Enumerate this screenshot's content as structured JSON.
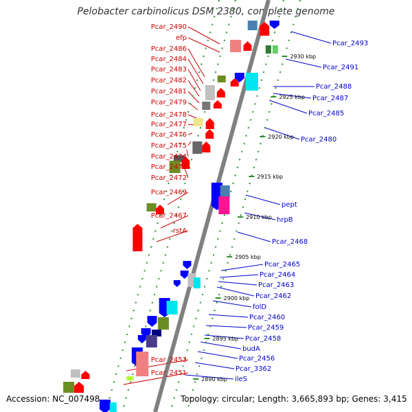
{
  "title": "Pelobacter carbinolicus DSM 2380, complete genome",
  "footer": {
    "accession": "Accession: NC_007498",
    "topology": "Topology: circular; Length: 3,665,893 bp; Genes: 3,415"
  },
  "colors": {
    "left_label": "#cc0000",
    "right_label": "#0000cc",
    "forward_gene": "#ff0000",
    "reverse_gene": "#0000ff",
    "backbone": "#808080",
    "tick": "#2e8b2e"
  },
  "kbp_ticks": [
    "2930 kbp",
    "2925 kbp",
    "2920 kbp",
    "2915 kbp",
    "2910 kbp",
    "2905 kbp",
    "2900 kbp",
    "2895 kbp",
    "2890 kbp"
  ],
  "left_labels": [
    "Pcar_2490",
    "efp",
    "Pcar_2486",
    "Pcar_2484",
    "Pcar_2483",
    "Pcar_2482",
    "Pcar_2481",
    "Pcar_2479",
    "Pcar_2478",
    "Pcar_2477",
    "Pcar_2476",
    "Pcar_2475",
    "Pcar_2474",
    "Pcar_2473",
    "Pcar_2472",
    "Pcar_2469",
    "Pcar_2467",
    "rstA",
    "Pcar_2453",
    "Pcar_2451"
  ],
  "right_labels": [
    "Pcar_2493",
    "Pcar_2491",
    "Pcar_2488",
    "Pcar_2487",
    "Pcar_2485",
    "Pcar_2480",
    "pept",
    "hrpB",
    "Pcar_2468",
    "Pcar_2465",
    "Pcar_2464",
    "Pcar_2463",
    "Pcar_2462",
    "folD",
    "Pcar_2460",
    "Pcar_2459",
    "Pcar_2458",
    "budA",
    "Pcar_2456",
    "Pcar_3362",
    "ileS"
  ]
}
